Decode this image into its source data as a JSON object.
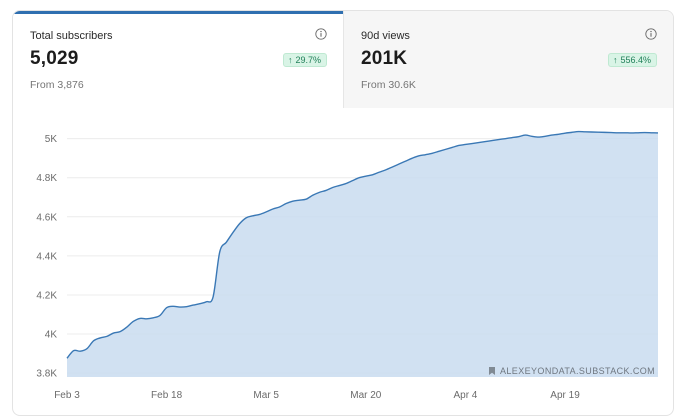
{
  "stats": {
    "subscribers": {
      "label": "Total subscribers",
      "value": "5,029",
      "change": "29.7%",
      "from": "From 3,876",
      "selected": true
    },
    "views": {
      "label": "90d views",
      "value": "201K",
      "change": "556.4%",
      "from": "From 30.6K",
      "selected": false
    }
  },
  "icons": {
    "info": "info-icon",
    "trend": "arrow-up-icon",
    "watermark": "bookmark-icon"
  },
  "colors": {
    "accent": "#2f6fb0",
    "area": "#c9dcf0",
    "positive": "#22815a",
    "positive_bg": "#d9f4e6"
  },
  "watermark": "ALEXEYONDATA.SUBSTACK.COM",
  "chart_data": {
    "type": "area",
    "title": "",
    "xlabel": "",
    "ylabel": "",
    "ylim": [
      3780,
      5080
    ],
    "yticks": [
      {
        "value": 3800,
        "label": "3.8K"
      },
      {
        "value": 4000,
        "label": "4K"
      },
      {
        "value": 4200,
        "label": "4.2K"
      },
      {
        "value": 4400,
        "label": "4.4K"
      },
      {
        "value": 4600,
        "label": "4.6K"
      },
      {
        "value": 4800,
        "label": "4.8K"
      },
      {
        "value": 5000,
        "label": "5K"
      }
    ],
    "xticks": [
      {
        "day": 0,
        "label": "Feb 3"
      },
      {
        "day": 15,
        "label": "Feb 18"
      },
      {
        "day": 30,
        "label": "Mar 5"
      },
      {
        "day": 45,
        "label": "Mar 20"
      },
      {
        "day": 60,
        "label": "Apr 4"
      },
      {
        "day": 75,
        "label": "Apr 19"
      }
    ],
    "grid": true,
    "series": [
      {
        "name": "",
        "x": [
          0,
          1,
          2,
          3,
          4,
          5,
          6,
          7,
          8,
          9,
          10,
          11,
          12,
          13,
          14,
          15,
          16,
          17,
          18,
          19,
          20,
          21,
          22,
          23,
          24,
          25,
          26,
          27,
          28,
          29,
          30,
          31,
          32,
          33,
          34,
          35,
          36,
          37,
          38,
          39,
          40,
          41,
          42,
          43,
          44,
          45,
          46,
          47,
          48,
          49,
          50,
          51,
          52,
          53,
          54,
          55,
          56,
          57,
          58,
          59,
          60,
          61,
          62,
          63,
          64,
          65,
          66,
          67,
          68,
          69,
          70,
          71,
          72,
          73,
          74,
          75,
          76,
          77,
          78,
          79,
          80,
          81,
          82,
          83,
          84,
          85,
          86,
          87,
          88,
          89
        ],
        "values": [
          3876,
          3915,
          3912,
          3925,
          3965,
          3980,
          3988,
          4005,
          4012,
          4035,
          4065,
          4080,
          4078,
          4083,
          4095,
          4135,
          4142,
          4138,
          4140,
          4148,
          4155,
          4165,
          4190,
          4420,
          4470,
          4520,
          4565,
          4595,
          4605,
          4612,
          4625,
          4640,
          4650,
          4668,
          4680,
          4685,
          4690,
          4710,
          4725,
          4735,
          4750,
          4760,
          4770,
          4785,
          4800,
          4808,
          4815,
          4828,
          4840,
          4855,
          4870,
          4885,
          4900,
          4912,
          4918,
          4925,
          4935,
          4945,
          4955,
          4965,
          4970,
          4975,
          4980,
          4985,
          4990,
          4995,
          5000,
          5005,
          5010,
          5018,
          5012,
          5008,
          5012,
          5018,
          5022,
          5028,
          5032,
          5036,
          5035,
          5034,
          5033,
          5032,
          5031,
          5030,
          5030,
          5029,
          5030,
          5031,
          5030,
          5029
        ]
      }
    ]
  }
}
